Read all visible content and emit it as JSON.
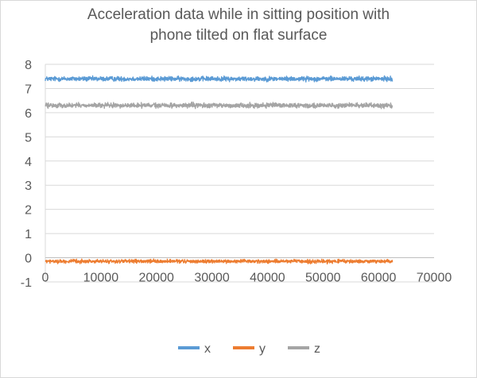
{
  "chart_data": {
    "type": "line",
    "title": "Acceleration data while in sitting position with phone tilted on flat surface",
    "title_lines": [
      "Acceleration data while in sitting position with",
      "phone tilted on flat surface"
    ],
    "xlabel": "",
    "ylabel": "",
    "xlim": [
      0,
      70000
    ],
    "ylim": [
      -1,
      8
    ],
    "x_ticks": [
      0,
      10000,
      20000,
      30000,
      40000,
      50000,
      60000,
      70000
    ],
    "y_ticks": [
      -1,
      0,
      1,
      2,
      3,
      4,
      5,
      6,
      7,
      8
    ],
    "grid": "horizontal",
    "legend_position": "bottom",
    "x_range_of_data": [
      0,
      62500
    ],
    "series": [
      {
        "name": "x",
        "color": "#5b9bd5",
        "mean": 7.4,
        "noise_amplitude": 0.08
      },
      {
        "name": "y",
        "color": "#ed7d31",
        "mean": -0.15,
        "noise_amplitude": 0.06
      },
      {
        "name": "z",
        "color": "#a5a5a5",
        "mean": 6.3,
        "noise_amplitude": 0.08
      }
    ]
  }
}
